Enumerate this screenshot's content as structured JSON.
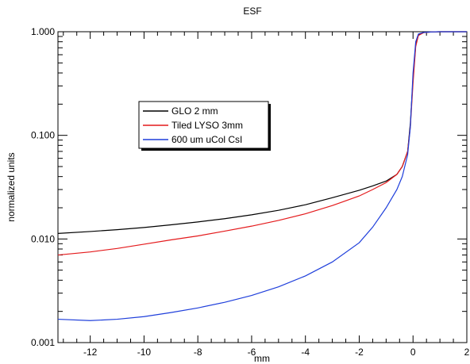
{
  "chart_data": {
    "type": "line",
    "title": "ESF",
    "xlabel": "mm",
    "ylabel": "normalized units",
    "xlim": [
      -13.2,
      2
    ],
    "ylim": [
      0.001,
      1.0
    ],
    "yscale": "log",
    "grid": false,
    "legend_position": "upper-left",
    "x_tick_labels": [
      "-12",
      "-10",
      "-8",
      "-6",
      "-4",
      "-2",
      "0",
      "2"
    ],
    "y_tick_labels": [
      "0.001",
      "0.010",
      "0.100",
      "1.000"
    ],
    "series": [
      {
        "name": "GLO 2 mm",
        "color": "#000000",
        "x": [
          -13.2,
          -12,
          -11,
          -10,
          -9,
          -8,
          -7,
          -6,
          -5,
          -4,
          -3,
          -2,
          -1.5,
          -1,
          -0.6,
          -0.4,
          -0.2,
          -0.1,
          0,
          0.1,
          0.2,
          0.4,
          0.7,
          1.0,
          1.5,
          2.0
        ],
        "y": [
          0.0113,
          0.0118,
          0.0123,
          0.0129,
          0.0137,
          0.0146,
          0.0157,
          0.0171,
          0.0189,
          0.0214,
          0.025,
          0.0295,
          0.0325,
          0.0362,
          0.042,
          0.05,
          0.07,
          0.13,
          0.35,
          0.75,
          0.93,
          0.985,
          0.995,
          1.0,
          1.0,
          1.0
        ]
      },
      {
        "name": "Tiled LYSO 3mm",
        "color": "#e41a1c",
        "x": [
          -13.2,
          -12,
          -11,
          -10,
          -9,
          -8,
          -7,
          -6,
          -5,
          -4,
          -3,
          -2,
          -1.5,
          -1,
          -0.6,
          -0.4,
          -0.2,
          -0.1,
          0,
          0.1,
          0.2,
          0.4,
          0.7,
          1.0,
          1.5,
          2.0
        ],
        "y": [
          0.007,
          0.0075,
          0.0081,
          0.0089,
          0.0098,
          0.0107,
          0.0119,
          0.0133,
          0.0151,
          0.0175,
          0.021,
          0.026,
          0.03,
          0.035,
          0.042,
          0.05,
          0.07,
          0.12,
          0.32,
          0.72,
          0.92,
          0.98,
          0.995,
          1.0,
          1.0,
          1.0
        ]
      },
      {
        "name": "600 um uCol CsI",
        "color": "#1f3fdb",
        "x": [
          -13.2,
          -12,
          -11,
          -10,
          -9,
          -8,
          -7,
          -6,
          -5,
          -4,
          -3,
          -2,
          -1.5,
          -1,
          -0.6,
          -0.4,
          -0.2,
          -0.1,
          0,
          0.1,
          0.2,
          0.4,
          0.7,
          1.0,
          1.5,
          2.0
        ],
        "y": [
          0.00168,
          0.00163,
          0.00168,
          0.00178,
          0.00195,
          0.00216,
          0.00245,
          0.00285,
          0.00345,
          0.0044,
          0.006,
          0.0092,
          0.013,
          0.02,
          0.03,
          0.04,
          0.065,
          0.12,
          0.4,
          0.8,
          0.95,
          0.985,
          0.995,
          1.0,
          1.0,
          1.0
        ]
      }
    ]
  }
}
